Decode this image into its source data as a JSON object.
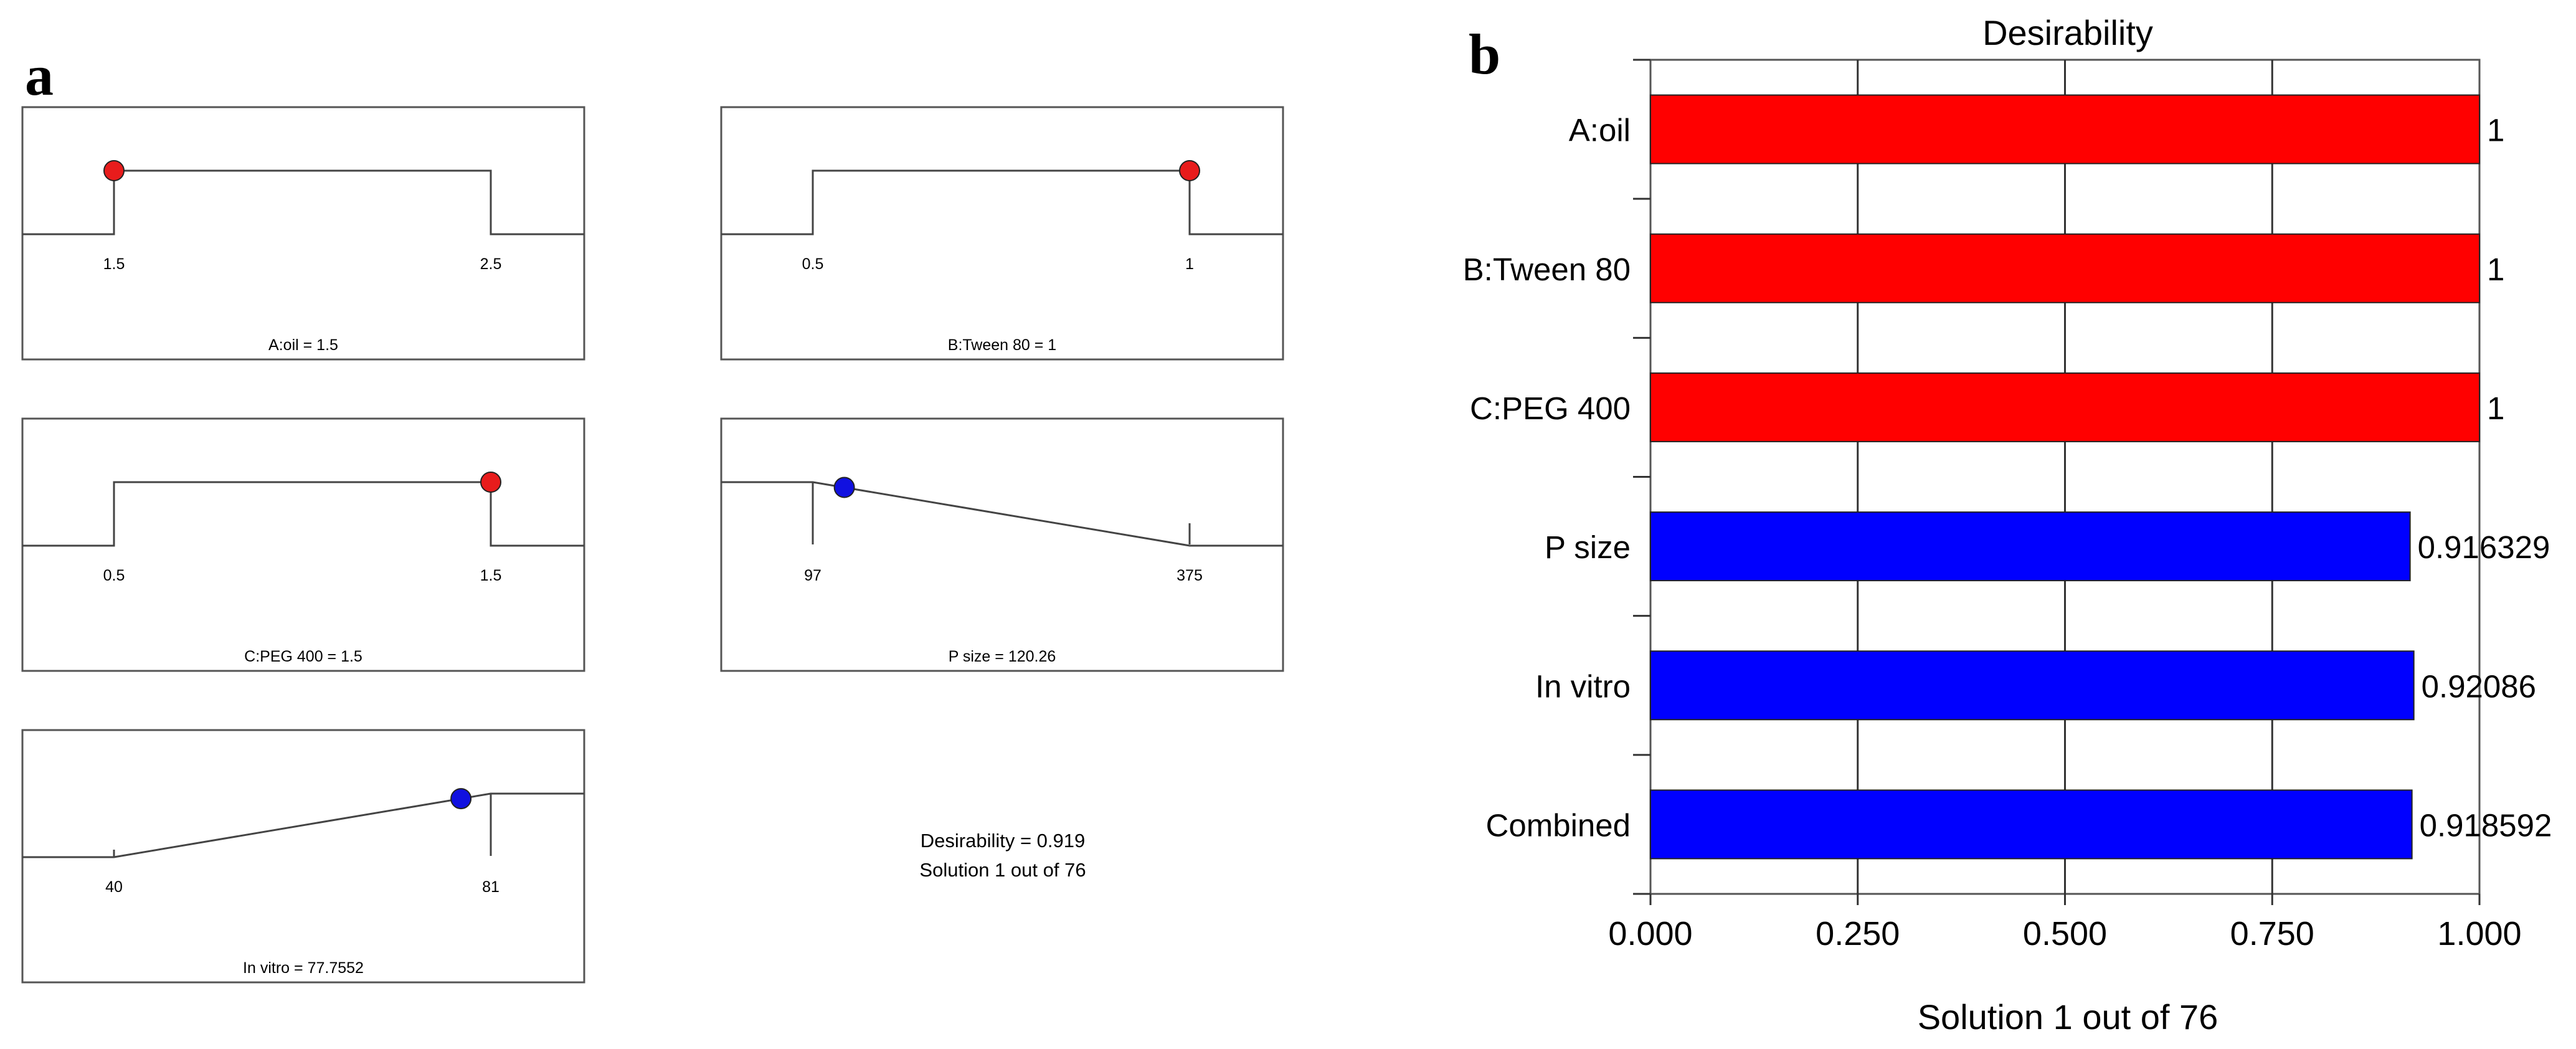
{
  "panel_a": {
    "letter": "a",
    "ramps": [
      {
        "label": "A:oil = 1.5",
        "kind": "range",
        "low": 1.5,
        "high": 2.5,
        "low_label": "1.5",
        "high_label": "2.5",
        "value": 1.5,
        "dot_color": "#e81c1c"
      },
      {
        "label": "B:Tween 80 = 1",
        "kind": "range",
        "low": 0.5,
        "high": 1,
        "low_label": "0.5",
        "high_label": "1",
        "value": 1,
        "dot_color": "#e81c1c"
      },
      {
        "label": "C:PEG 400 = 1.5",
        "kind": "range",
        "low": 0.5,
        "high": 1.5,
        "low_label": "0.5",
        "high_label": "1.5",
        "value": 1.5,
        "dot_color": "#e81c1c"
      },
      {
        "label": "P size = 120.26",
        "kind": "minimize",
        "low": 97,
        "high": 375,
        "low_label": "97",
        "high_label": "375",
        "value": 120.26,
        "desirability": 0.916329,
        "dot_color": "#1010e0"
      },
      {
        "label": "In vitro = 77.7552",
        "kind": "maximize",
        "low": 40,
        "high": 81,
        "low_label": "40",
        "high_label": "81",
        "value": 77.7552,
        "desirability": 0.92086,
        "dot_color": "#1010e0"
      }
    ],
    "summary_line1": "Desirability = 0.919",
    "summary_line2": "Solution 1 out of 76"
  },
  "panel_b": {
    "letter": "b"
  },
  "chart_data": {
    "type": "bar",
    "orientation": "horizontal",
    "title": "Desirability",
    "xlabel": "Solution 1 out of 76",
    "ylabel": "",
    "xlim": [
      0,
      1
    ],
    "xticks": [
      "0.000",
      "0.250",
      "0.500",
      "0.750",
      "1.000"
    ],
    "xtick_values": [
      0,
      0.25,
      0.5,
      0.75,
      1
    ],
    "grid": "vertical",
    "categories": [
      "A:oil",
      "B:Tween 80",
      "C:PEG 400",
      "P size",
      "In vitro",
      "Combined"
    ],
    "values": [
      1,
      1,
      1,
      0.916329,
      0.92086,
      0.918592
    ],
    "value_labels": [
      "1",
      "1",
      "1",
      "0.916329",
      "0.92086",
      "0.918592"
    ],
    "colors": [
      "#ff0000",
      "#ff0000",
      "#ff0000",
      "#0000ff",
      "#0000ff",
      "#0000ff"
    ]
  }
}
